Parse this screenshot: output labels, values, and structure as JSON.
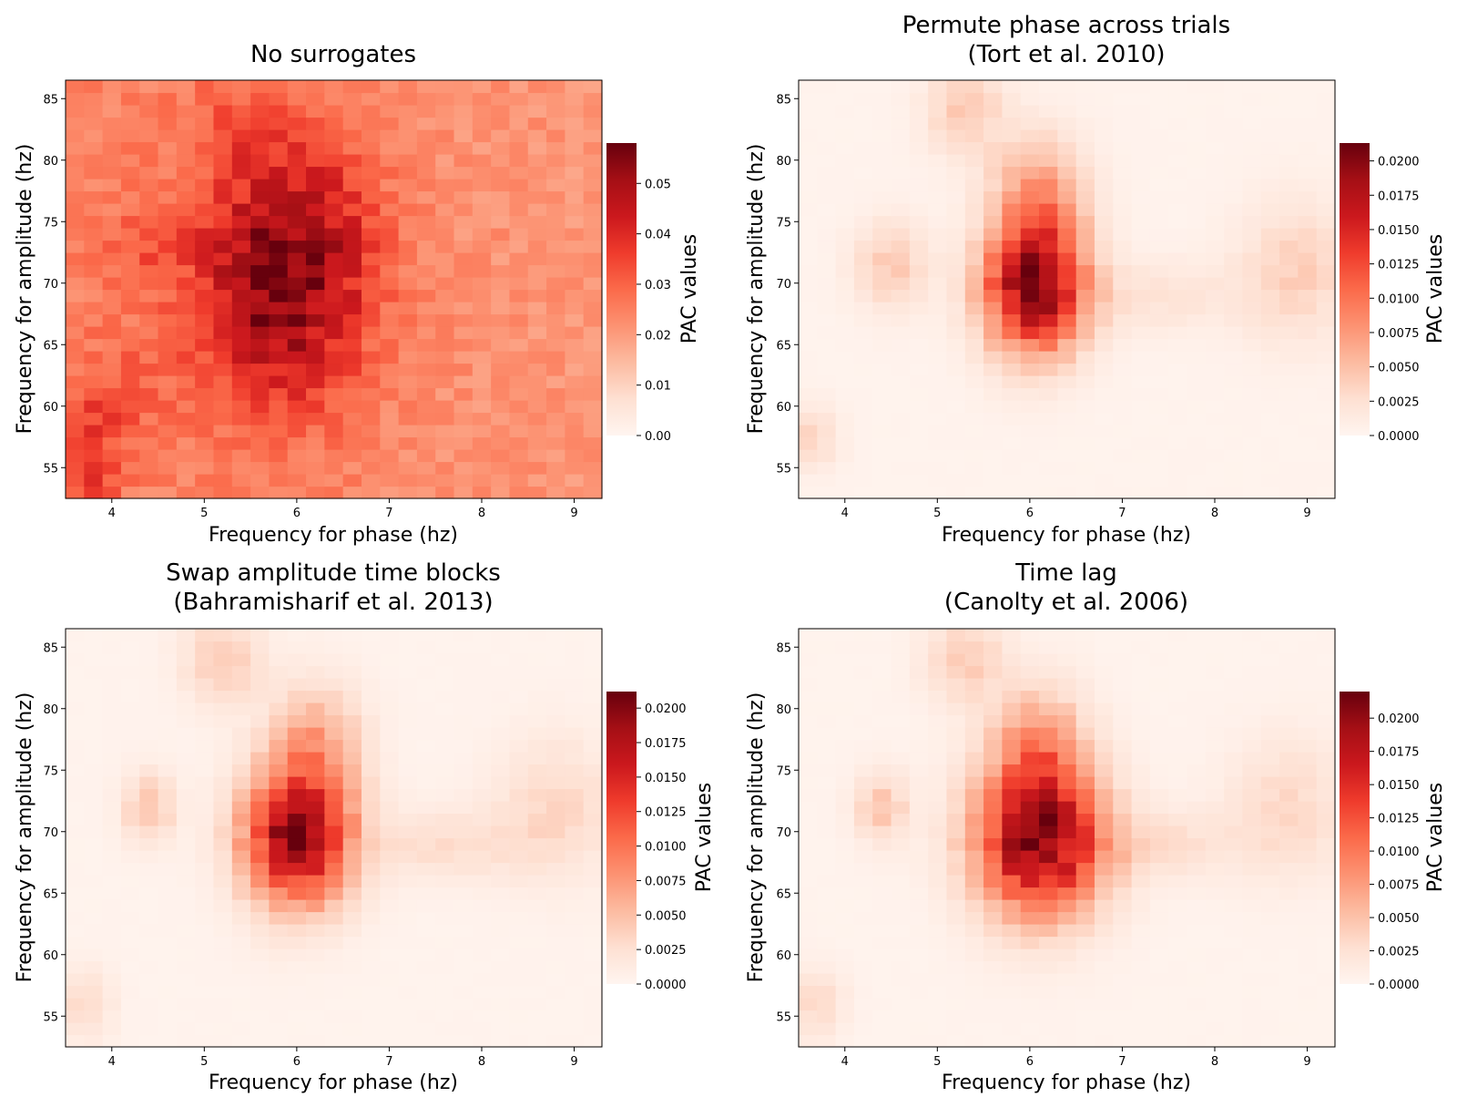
{
  "chart_data": [
    {
      "type": "heatmap",
      "title": [
        "No surrogates"
      ],
      "xlabel": "Frequency for phase (hz)",
      "ylabel": "Frequency for amplitude (hz)",
      "xlim": [
        3.5,
        9.3
      ],
      "ylim": [
        52.5,
        86.5
      ],
      "xticks": [
        "4",
        "5",
        "6",
        "7",
        "8",
        "9"
      ],
      "yticks": [
        "55",
        "60",
        "65",
        "70",
        "75",
        "80",
        "85"
      ],
      "colorbar_label": "PAC values",
      "colorbar_ticks": [
        "0.00",
        "0.01",
        "0.02",
        "0.03",
        "0.04",
        "0.05"
      ],
      "vmin": 0,
      "vmax": 0.058,
      "cmap": "Reds",
      "pattern": {
        "baseline": 0.025,
        "baseline_right": 0.021,
        "blobs": [
          {
            "x": 5.8,
            "y": 69.5,
            "amp": 0.03,
            "sx": 0.65,
            "sy": 7
          },
          {
            "x": 6.2,
            "y": 76,
            "amp": 0.008,
            "sx": 0.5,
            "sy": 5
          },
          {
            "x": 3.7,
            "y": 56,
            "amp": 0.013,
            "sx": 0.25,
            "sy": 4
          },
          {
            "x": 4.2,
            "y": 61,
            "amp": 0.006,
            "sx": 0.3,
            "sy": 3
          },
          {
            "x": 4.4,
            "y": 73,
            "amp": 0.006,
            "sx": 0.3,
            "sy": 2.5
          },
          {
            "x": 5.3,
            "y": 83,
            "amp": 0.005,
            "sx": 0.4,
            "sy": 3
          }
        ]
      }
    },
    {
      "type": "heatmap",
      "title": [
        "Permute phase across trials",
        "(Tort et al. 2010)"
      ],
      "xlabel": "Frequency for phase (hz)",
      "ylabel": "Frequency for amplitude (hz)",
      "xlim": [
        3.5,
        9.3
      ],
      "ylim": [
        52.5,
        86.5
      ],
      "xticks": [
        "4",
        "5",
        "6",
        "7",
        "8",
        "9"
      ],
      "yticks": [
        "55",
        "60",
        "65",
        "70",
        "75",
        "80",
        "85"
      ],
      "colorbar_label": "PAC values",
      "colorbar_ticks": [
        "0.0000",
        "0.0025",
        "0.0050",
        "0.0075",
        "0.0100",
        "0.0125",
        "0.0150",
        "0.0175",
        "0.0200"
      ],
      "vmin": 0,
      "vmax": 0.0213,
      "cmap": "Reds",
      "pattern": {
        "baseline": 0.0003,
        "baseline_right": 0.0003,
        "blobs": [
          {
            "x": 6.05,
            "y": 69.5,
            "amp": 0.02,
            "sx": 0.38,
            "sy": 3.6
          },
          {
            "x": 6.1,
            "y": 77,
            "amp": 0.007,
            "sx": 0.35,
            "sy": 3.5
          },
          {
            "x": 5.3,
            "y": 84,
            "amp": 0.004,
            "sx": 0.3,
            "sy": 2.5
          },
          {
            "x": 4.5,
            "y": 71.5,
            "amp": 0.004,
            "sx": 0.28,
            "sy": 2.5
          },
          {
            "x": 8.9,
            "y": 71,
            "amp": 0.0035,
            "sx": 0.45,
            "sy": 4
          },
          {
            "x": 3.65,
            "y": 57.5,
            "amp": 0.003,
            "sx": 0.2,
            "sy": 1.8
          },
          {
            "x": 7.4,
            "y": 69,
            "amp": 0.002,
            "sx": 0.6,
            "sy": 2
          }
        ]
      }
    },
    {
      "type": "heatmap",
      "title": [
        "Swap amplitude time blocks",
        "(Bahramisharif et al. 2013)"
      ],
      "xlabel": "Frequency for phase (hz)",
      "ylabel": "Frequency for amplitude (hz)",
      "xlim": [
        3.5,
        9.3
      ],
      "ylim": [
        52.5,
        86.5
      ],
      "xticks": [
        "4",
        "5",
        "6",
        "7",
        "8",
        "9"
      ],
      "yticks": [
        "55",
        "60",
        "65",
        "70",
        "75",
        "80",
        "85"
      ],
      "colorbar_label": "PAC values",
      "colorbar_ticks": [
        "0.0000",
        "0.0025",
        "0.0050",
        "0.0075",
        "0.0100",
        "0.0125",
        "0.0150",
        "0.0175",
        "0.0200"
      ],
      "vmin": 0,
      "vmax": 0.0212,
      "cmap": "Reds",
      "pattern": {
        "baseline": 0.0003,
        "baseline_right": 0.0003,
        "blobs": [
          {
            "x": 6.0,
            "y": 69.5,
            "amp": 0.0195,
            "sx": 0.4,
            "sy": 3.8
          },
          {
            "x": 6.2,
            "y": 77,
            "amp": 0.006,
            "sx": 0.35,
            "sy": 3.5
          },
          {
            "x": 5.2,
            "y": 84,
            "amp": 0.004,
            "sx": 0.3,
            "sy": 2.5
          },
          {
            "x": 4.4,
            "y": 72,
            "amp": 0.0045,
            "sx": 0.2,
            "sy": 2
          },
          {
            "x": 8.8,
            "y": 72,
            "amp": 0.003,
            "sx": 0.45,
            "sy": 4
          },
          {
            "x": 3.7,
            "y": 56,
            "amp": 0.003,
            "sx": 0.2,
            "sy": 2
          },
          {
            "x": 7.6,
            "y": 69,
            "amp": 0.0025,
            "sx": 0.6,
            "sy": 2
          }
        ]
      }
    },
    {
      "type": "heatmap",
      "title": [
        "Time lag",
        "(Canolty et al. 2006)"
      ],
      "xlabel": "Frequency for phase (hz)",
      "ylabel": "Frequency for amplitude (hz)",
      "xlim": [
        3.5,
        9.3
      ],
      "ylim": [
        52.5,
        86.5
      ],
      "xticks": [
        "4",
        "5",
        "6",
        "7",
        "8",
        "9"
      ],
      "yticks": [
        "55",
        "60",
        "65",
        "70",
        "75",
        "80",
        "85"
      ],
      "colorbar_label": "PAC values",
      "colorbar_ticks": [
        "0.0000",
        "0.0025",
        "0.0050",
        "0.0075",
        "0.0100",
        "0.0125",
        "0.0150",
        "0.0175",
        "0.0200"
      ],
      "vmin": 0,
      "vmax": 0.022,
      "cmap": "Reds",
      "pattern": {
        "baseline": 0.0003,
        "baseline_right": 0.0003,
        "blobs": [
          {
            "x": 6.1,
            "y": 69.3,
            "amp": 0.0205,
            "sx": 0.48,
            "sy": 4.2
          },
          {
            "x": 6.1,
            "y": 77,
            "amp": 0.0065,
            "sx": 0.35,
            "sy": 3.5
          },
          {
            "x": 5.3,
            "y": 84,
            "amp": 0.004,
            "sx": 0.3,
            "sy": 2.5
          },
          {
            "x": 4.4,
            "y": 72,
            "amp": 0.0045,
            "sx": 0.2,
            "sy": 2
          },
          {
            "x": 8.8,
            "y": 72,
            "amp": 0.003,
            "sx": 0.45,
            "sy": 4
          },
          {
            "x": 3.7,
            "y": 56,
            "amp": 0.003,
            "sx": 0.2,
            "sy": 2
          },
          {
            "x": 7.4,
            "y": 69,
            "amp": 0.0025,
            "sx": 0.6,
            "sy": 2
          }
        ]
      }
    }
  ]
}
